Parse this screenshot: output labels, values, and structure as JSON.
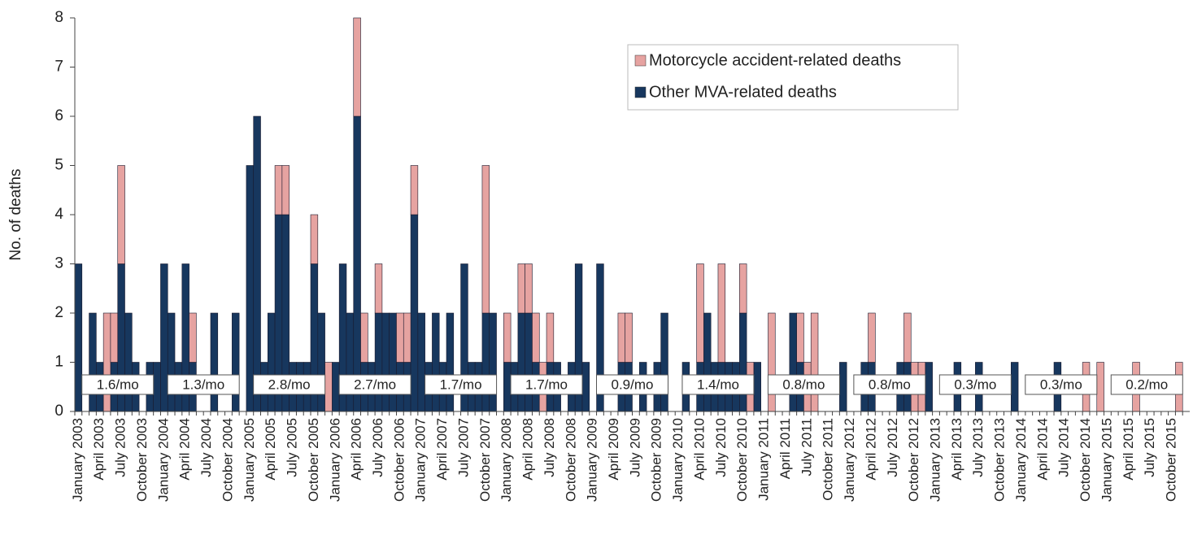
{
  "chart_data": {
    "type": "stacked-bar",
    "y_label": "No. of deaths",
    "categories": [
      "January 2003",
      null,
      null,
      "April 2003",
      null,
      null,
      "July 2003",
      null,
      null,
      "October 2003",
      null,
      null,
      "January 2004",
      null,
      null,
      "April 2004",
      null,
      null,
      "July 2004",
      null,
      null,
      "October 2004",
      null,
      null,
      "January 2005",
      null,
      null,
      "April 2005",
      null,
      null,
      "July 2005",
      null,
      null,
      "October 2005",
      null,
      null,
      "January 2006",
      null,
      null,
      "April 2006",
      null,
      null,
      "July 2006",
      null,
      null,
      "October 2006",
      null,
      null,
      "January 2007",
      null,
      null,
      "April 2007",
      null,
      null,
      "July 2007",
      null,
      null,
      "October 2007",
      null,
      null,
      "January 2008",
      null,
      null,
      "April 2008",
      null,
      null,
      "July 2008",
      null,
      null,
      "October 2008",
      null,
      null,
      "January 2009",
      null,
      null,
      "April 2009",
      null,
      null,
      "July 2009",
      null,
      null,
      "October 2009",
      null,
      null,
      "January 2010",
      null,
      null,
      "April 2010",
      null,
      null,
      "July 2010",
      null,
      null,
      "October 2010",
      null,
      null,
      "January 2011",
      null,
      null,
      "April 2011",
      null,
      null,
      "July 2011",
      null,
      null,
      "October 2011",
      null,
      null,
      "January 2012",
      null,
      null,
      "April 2012",
      null,
      null,
      "July 2012",
      null,
      null,
      "October 2012",
      null,
      null,
      "January 2013",
      null,
      null,
      "April 2013",
      null,
      null,
      "July 2013",
      null,
      null,
      "October 2013",
      null,
      null,
      "January 2014",
      null,
      null,
      "April 2014",
      null,
      null,
      "July 2014",
      null,
      null,
      "October 2014",
      null,
      null,
      "January 2015",
      null,
      null,
      "April 2015",
      null,
      null,
      "July 2015",
      null,
      null,
      "October 2015",
      null,
      null
    ],
    "series": [
      {
        "name": "Other MVA-related deaths",
        "color": "#17375e",
        "values": [
          3,
          0,
          2,
          1,
          0,
          1,
          3,
          2,
          1,
          0,
          1,
          1,
          3,
          2,
          1,
          3,
          1,
          0,
          0,
          2,
          0,
          0,
          2,
          0,
          5,
          6,
          1,
          2,
          4,
          4,
          1,
          1,
          1,
          3,
          2,
          0,
          1,
          3,
          2,
          6,
          1,
          1,
          2,
          2,
          2,
          1,
          1,
          4,
          2,
          1,
          2,
          1,
          2,
          0,
          3,
          1,
          1,
          2,
          2,
          0,
          1,
          1,
          2,
          2,
          1,
          0,
          1,
          1,
          0,
          1,
          3,
          1,
          0,
          3,
          0,
          0,
          1,
          1,
          0,
          1,
          0,
          1,
          2,
          0,
          0,
          1,
          0,
          1,
          2,
          1,
          1,
          1,
          1,
          2,
          0,
          1,
          0,
          0,
          0,
          0,
          2,
          1,
          0,
          0,
          0,
          0,
          0,
          1,
          0,
          0,
          1,
          1,
          0,
          0,
          0,
          1,
          1,
          0,
          0,
          1,
          0,
          0,
          0,
          1,
          0,
          0,
          1,
          0,
          0,
          0,
          0,
          1,
          0,
          0,
          0,
          0,
          0,
          1,
          0,
          0,
          0,
          0,
          0,
          0,
          0,
          0,
          0,
          0,
          0,
          0,
          0,
          0,
          0,
          0,
          0,
          0
        ]
      },
      {
        "name": "Motorcycle accident-related deaths",
        "color": "#e6a3a1",
        "values": [
          0,
          0,
          0,
          0,
          2,
          1,
          2,
          0,
          0,
          0,
          0,
          0,
          0,
          0,
          0,
          0,
          1,
          0,
          0,
          0,
          0,
          0,
          0,
          0,
          0,
          0,
          0,
          0,
          1,
          1,
          0,
          0,
          0,
          1,
          0,
          1,
          0,
          0,
          0,
          2,
          1,
          0,
          1,
          0,
          0,
          1,
          1,
          1,
          0,
          0,
          0,
          0,
          0,
          0,
          0,
          0,
          0,
          3,
          0,
          0,
          1,
          0,
          1,
          1,
          1,
          1,
          1,
          0,
          0,
          0,
          0,
          0,
          0,
          0,
          0,
          0,
          1,
          1,
          0,
          0,
          0,
          0,
          0,
          0,
          0,
          0,
          0,
          2,
          0,
          0,
          2,
          0,
          0,
          1,
          1,
          0,
          0,
          2,
          0,
          0,
          0,
          1,
          1,
          2,
          0,
          0,
          0,
          0,
          0,
          0,
          0,
          1,
          0,
          0,
          0,
          0,
          1,
          1,
          1,
          0,
          0,
          0,
          0,
          0,
          0,
          0,
          0,
          0,
          0,
          0,
          0,
          0,
          0,
          0,
          0,
          0,
          0,
          0,
          0,
          0,
          0,
          1,
          0,
          1,
          0,
          0,
          0,
          0,
          1,
          0,
          0,
          0,
          0,
          0,
          1,
          0
        ]
      }
    ],
    "annotations": [
      "1.6/mo",
      "1.3/mo",
      "2.8/mo",
      "2.7/mo",
      "1.7/mo",
      "1.7/mo",
      "0.9/mo",
      "1.4/mo",
      "0.8/mo",
      "0.8/mo",
      "0.3/mo",
      "0.3/mo",
      "0.2/mo"
    ],
    "ylim": [
      0,
      8
    ],
    "yticks": [
      0,
      1,
      2,
      3,
      4,
      5,
      6,
      7,
      8
    ],
    "grid": false
  }
}
